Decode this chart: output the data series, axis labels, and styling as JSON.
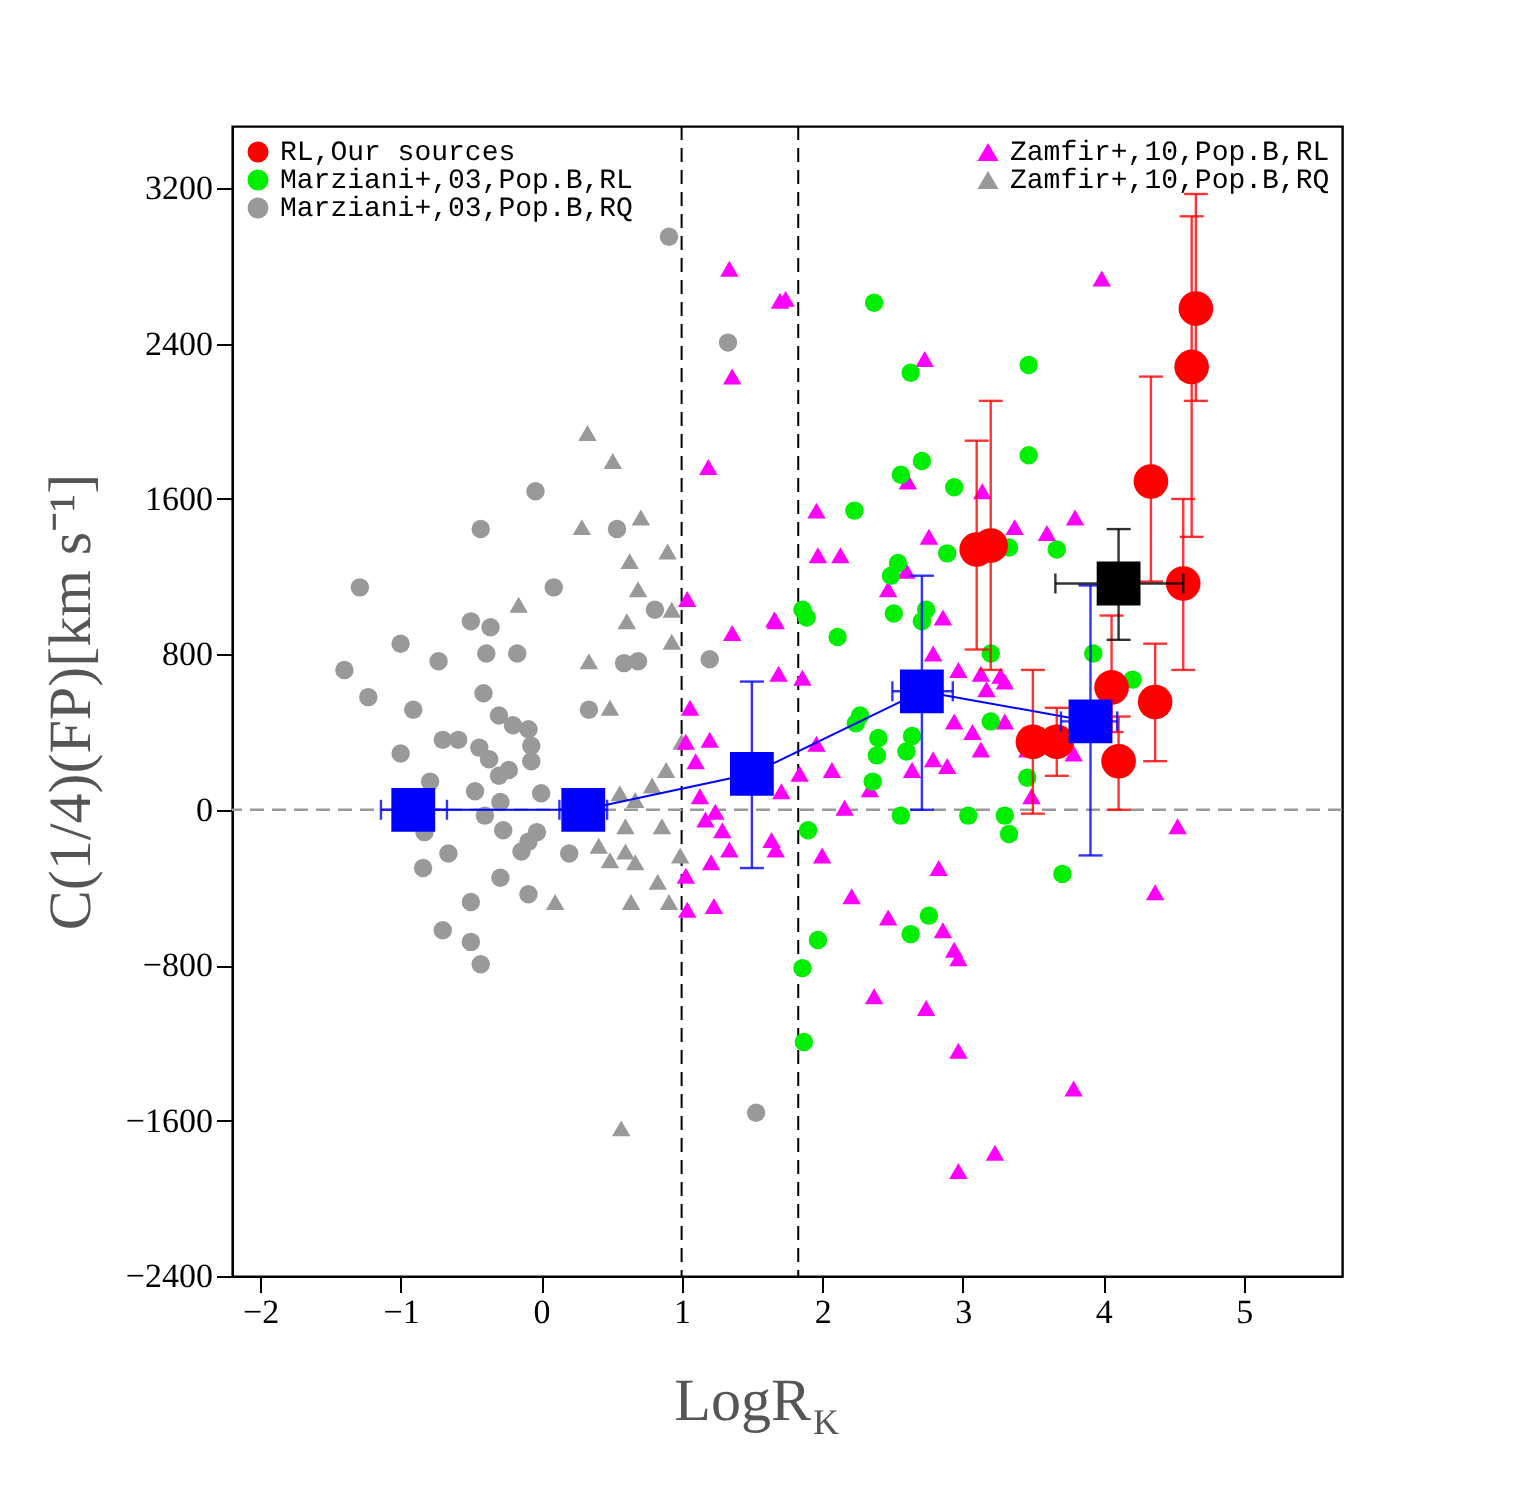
{
  "chart_data": {
    "type": "scatter",
    "xlabel": "LogR$_{K}$",
    "ylabel": "C(1/4)(FP)[km s⁻¹]",
    "xlim": [
      -2.2,
      5.7
    ],
    "ylim": [
      -2400,
      3520
    ],
    "xticks": [
      -2,
      -1,
      0,
      1,
      2,
      3,
      4,
      5
    ],
    "yticks": [
      -2400,
      -1600,
      -800,
      0,
      800,
      1600,
      2400,
      3200
    ],
    "grid": false,
    "legend": "top",
    "ref_lines": [
      {
        "axis": "x",
        "value": 1,
        "color": "#000000",
        "line_style": "dashed"
      },
      {
        "axis": "x",
        "value": 1.83,
        "color": "#000000",
        "line_style": "dashed"
      },
      {
        "axis": "y",
        "value": 0,
        "color": "#999999",
        "line_style": "dashed"
      }
    ],
    "series": [
      {
        "name": "RL,Our sources",
        "color": "#ff0000",
        "marker": "circle",
        "x": [
          4.66,
          4.63,
          4.34,
          3.1,
          3.2,
          4.57,
          4.06,
          4.11,
          4.37,
          3.5,
          3.67
        ],
        "values": [
          2580,
          2280,
          1690,
          1340,
          1360,
          1165,
          630,
          250,
          555,
          350,
          350
        ],
        "errors": [
          [
            2105,
            3170
          ],
          [
            1405,
            3055
          ],
          [
            1175,
            2230
          ],
          [
            825,
            1900
          ],
          [
            720,
            2105
          ],
          [
            720,
            1600
          ],
          [
            400,
            1000
          ],
          [
            0,
            480
          ],
          [
            250,
            855
          ],
          [
            -20,
            720
          ],
          [
            175,
            525
          ]
        ]
      },
      {
        "name": "Marziani+,03,Pop.B,RL",
        "color": "#00ee00",
        "marker": "circle",
        "x": [
          2.37,
          2.63,
          3.47,
          3.47,
          2.71,
          2.56,
          2.94,
          2.23,
          2.89,
          2.54,
          2.49,
          3.67,
          3.33,
          1.86,
          1.89,
          2.51,
          2.74,
          2.71,
          2.11,
          3.93,
          3.2,
          4.21,
          2.27,
          2.24,
          2.4,
          2.39,
          2.6,
          2.64,
          2.36,
          3.2,
          3.46,
          2.56,
          3.04,
          3.3,
          3.33,
          1.9,
          3.71,
          2.76,
          2.63,
          1.97,
          1.86,
          1.87
        ],
        "values": [
          2610,
          2250,
          2290,
          1825,
          1795,
          1725,
          1660,
          1540,
          1320,
          1270,
          1205,
          1340,
          1350,
          1030,
          990,
          1010,
          1030,
          970,
          890,
          805,
          805,
          670,
          485,
          445,
          370,
          280,
          300,
          380,
          145,
          455,
          165,
          -30,
          -30,
          -30,
          -125,
          -105,
          -330,
          -545,
          -640,
          -670,
          -815,
          -1195
        ]
      },
      {
        "name": "Marziani+,03,Pop.B,RQ",
        "color": "#999999",
        "marker": "circle",
        "x": [
          0.91,
          1.33,
          -0.04,
          -0.43,
          0.54,
          -1.29,
          0.09,
          -0.5,
          -0.36,
          -1.0,
          -0.73,
          -0.39,
          -0.17,
          -1.4,
          -1.23,
          -0.91,
          -0.41,
          -0.3,
          0.34,
          0.59,
          0.69,
          0.81,
          1.2,
          -0.2,
          -0.09,
          -0.7,
          -0.59,
          -1.0,
          -0.44,
          -0.37,
          -0.07,
          -0.07,
          -0.23,
          -0.3,
          -0.79,
          -0.47,
          0.0,
          -0.29,
          -0.4,
          -0.27,
          -0.83,
          -0.03,
          -0.09,
          -0.14,
          -0.66,
          0.2,
          -0.84,
          -0.29,
          -0.09,
          -0.5,
          -0.7,
          -0.5,
          -0.43,
          1.53
        ],
        "values": [
          2950,
          2405,
          1640,
          1445,
          1445,
          1145,
          1145,
          970,
          940,
          855,
          765,
          805,
          805,
          720,
          580,
          515,
          600,
          485,
          515,
          755,
          765,
          1030,
          775,
          435,
          415,
          360,
          360,
          290,
          320,
          260,
          330,
          250,
          205,
          175,
          145,
          95,
          85,
          40,
          -30,
          -105,
          -115,
          -115,
          -165,
          -215,
          -225,
          -225,
          -300,
          -350,
          -435,
          -475,
          -620,
          -680,
          -795,
          -1560
        ]
      },
      {
        "name": "Zamfir+,10,Pop.B,RL",
        "color": "#ff00ff",
        "marker": "triangle",
        "x": [
          1.34,
          1.7,
          1.36,
          1.19,
          1.04,
          1.36,
          1.66,
          1.69,
          1.06,
          1.03,
          1.2,
          1.1,
          1.13,
          1.24,
          1.29,
          1.17,
          1.34,
          1.21,
          1.03,
          1.04,
          1.23,
          1.64,
          1.71,
          1.74,
          3.99,
          2.73,
          2.61,
          1.96,
          1.97,
          2.13,
          3.14,
          2.76,
          3.37,
          3.6,
          3.8,
          2.6,
          2.47,
          1.67,
          2.86,
          1.86,
          2.79,
          2.97,
          3.13,
          3.27,
          3.17,
          3.3,
          2.94,
          3.07,
          3.13,
          3.3,
          2.79,
          2.89,
          2.64,
          1.96,
          2.07,
          1.84,
          2.34,
          2.16,
          3.46,
          3.49,
          3.79,
          1.67,
          2.0,
          2.83,
          2.21,
          2.47,
          2.86,
          2.94,
          2.97,
          2.37,
          2.74,
          2.97,
          3.79,
          3.23,
          2.97,
          4.37,
          4.53
        ],
        "values": [
          2785,
          2620,
          2230,
          1765,
          1085,
          910,
          980,
          700,
          525,
          350,
          360,
          250,
          70,
          -10,
          -105,
          -50,
          -205,
          -270,
          -340,
          -515,
          -495,
          -155,
          95,
          2630,
          2735,
          2320,
          1690,
          1540,
          1310,
          1310,
          1640,
          1405,
          1455,
          1425,
          1505,
          1230,
          1135,
          970,
          990,
          680,
          805,
          720,
          700,
          690,
          620,
          660,
          455,
          400,
          310,
          455,
          260,
          225,
          205,
          340,
          205,
          185,
          105,
          10,
          310,
          70,
          290,
          -205,
          -235,
          -300,
          -445,
          -555,
          -620,
          -720,
          -765,
          -960,
          -1020,
          -1240,
          -1435,
          -1765,
          -1860,
          -425,
          -85
        ]
      },
      {
        "name": "Zamfir+,10,Pop.B,RQ",
        "color": "#999999",
        "marker": "triangle",
        "x": [
          0.33,
          0.51,
          0.29,
          0.71,
          0.63,
          0.9,
          -0.16,
          0.69,
          0.61,
          0.93,
          0.93,
          0.34,
          0.49,
          0.56,
          0.67,
          0.79,
          0.89,
          1.0,
          0.6,
          0.86,
          0.41,
          0.49,
          0.6,
          0.67,
          0.99,
          0.83,
          0.91,
          0.64,
          0.1,
          0.57
        ],
        "values": [
          1940,
          1795,
          1455,
          1505,
          1280,
          1330,
          1055,
          1135,
          970,
          1030,
          865,
          765,
          525,
          85,
          50,
          125,
          205,
          350,
          -85,
          -85,
          -185,
          -260,
          -215,
          -270,
          -235,
          -370,
          -475,
          -475,
          -475,
          -1640
        ]
      },
      {
        "type": "line",
        "line_style": "solid",
        "color": "#0000ff",
        "marker": "square",
        "x": [
          -0.91,
          0.3,
          1.5,
          2.71,
          3.91
        ],
        "values": [
          0,
          0,
          185,
          610,
          455
        ],
        "errors": [
          null,
          null,
          [
            -300,
            660
          ],
          [
            0,
            1205
          ],
          [
            -235,
            1155
          ]
        ],
        "xerrors": [
          [
            -1.14,
            -0.67
          ],
          [
            0.13,
            0.47
          ],
          null,
          [
            2.5,
            2.93
          ],
          [
            3.7,
            4.1
          ]
        ]
      },
      {
        "color": "#000000",
        "marker": "square",
        "x": [
          4.11
        ],
        "values": [
          1165
        ],
        "errors": [
          [
            875,
            1445
          ]
        ],
        "xerrors": [
          [
            3.66,
            4.57
          ]
        ]
      }
    ]
  }
}
